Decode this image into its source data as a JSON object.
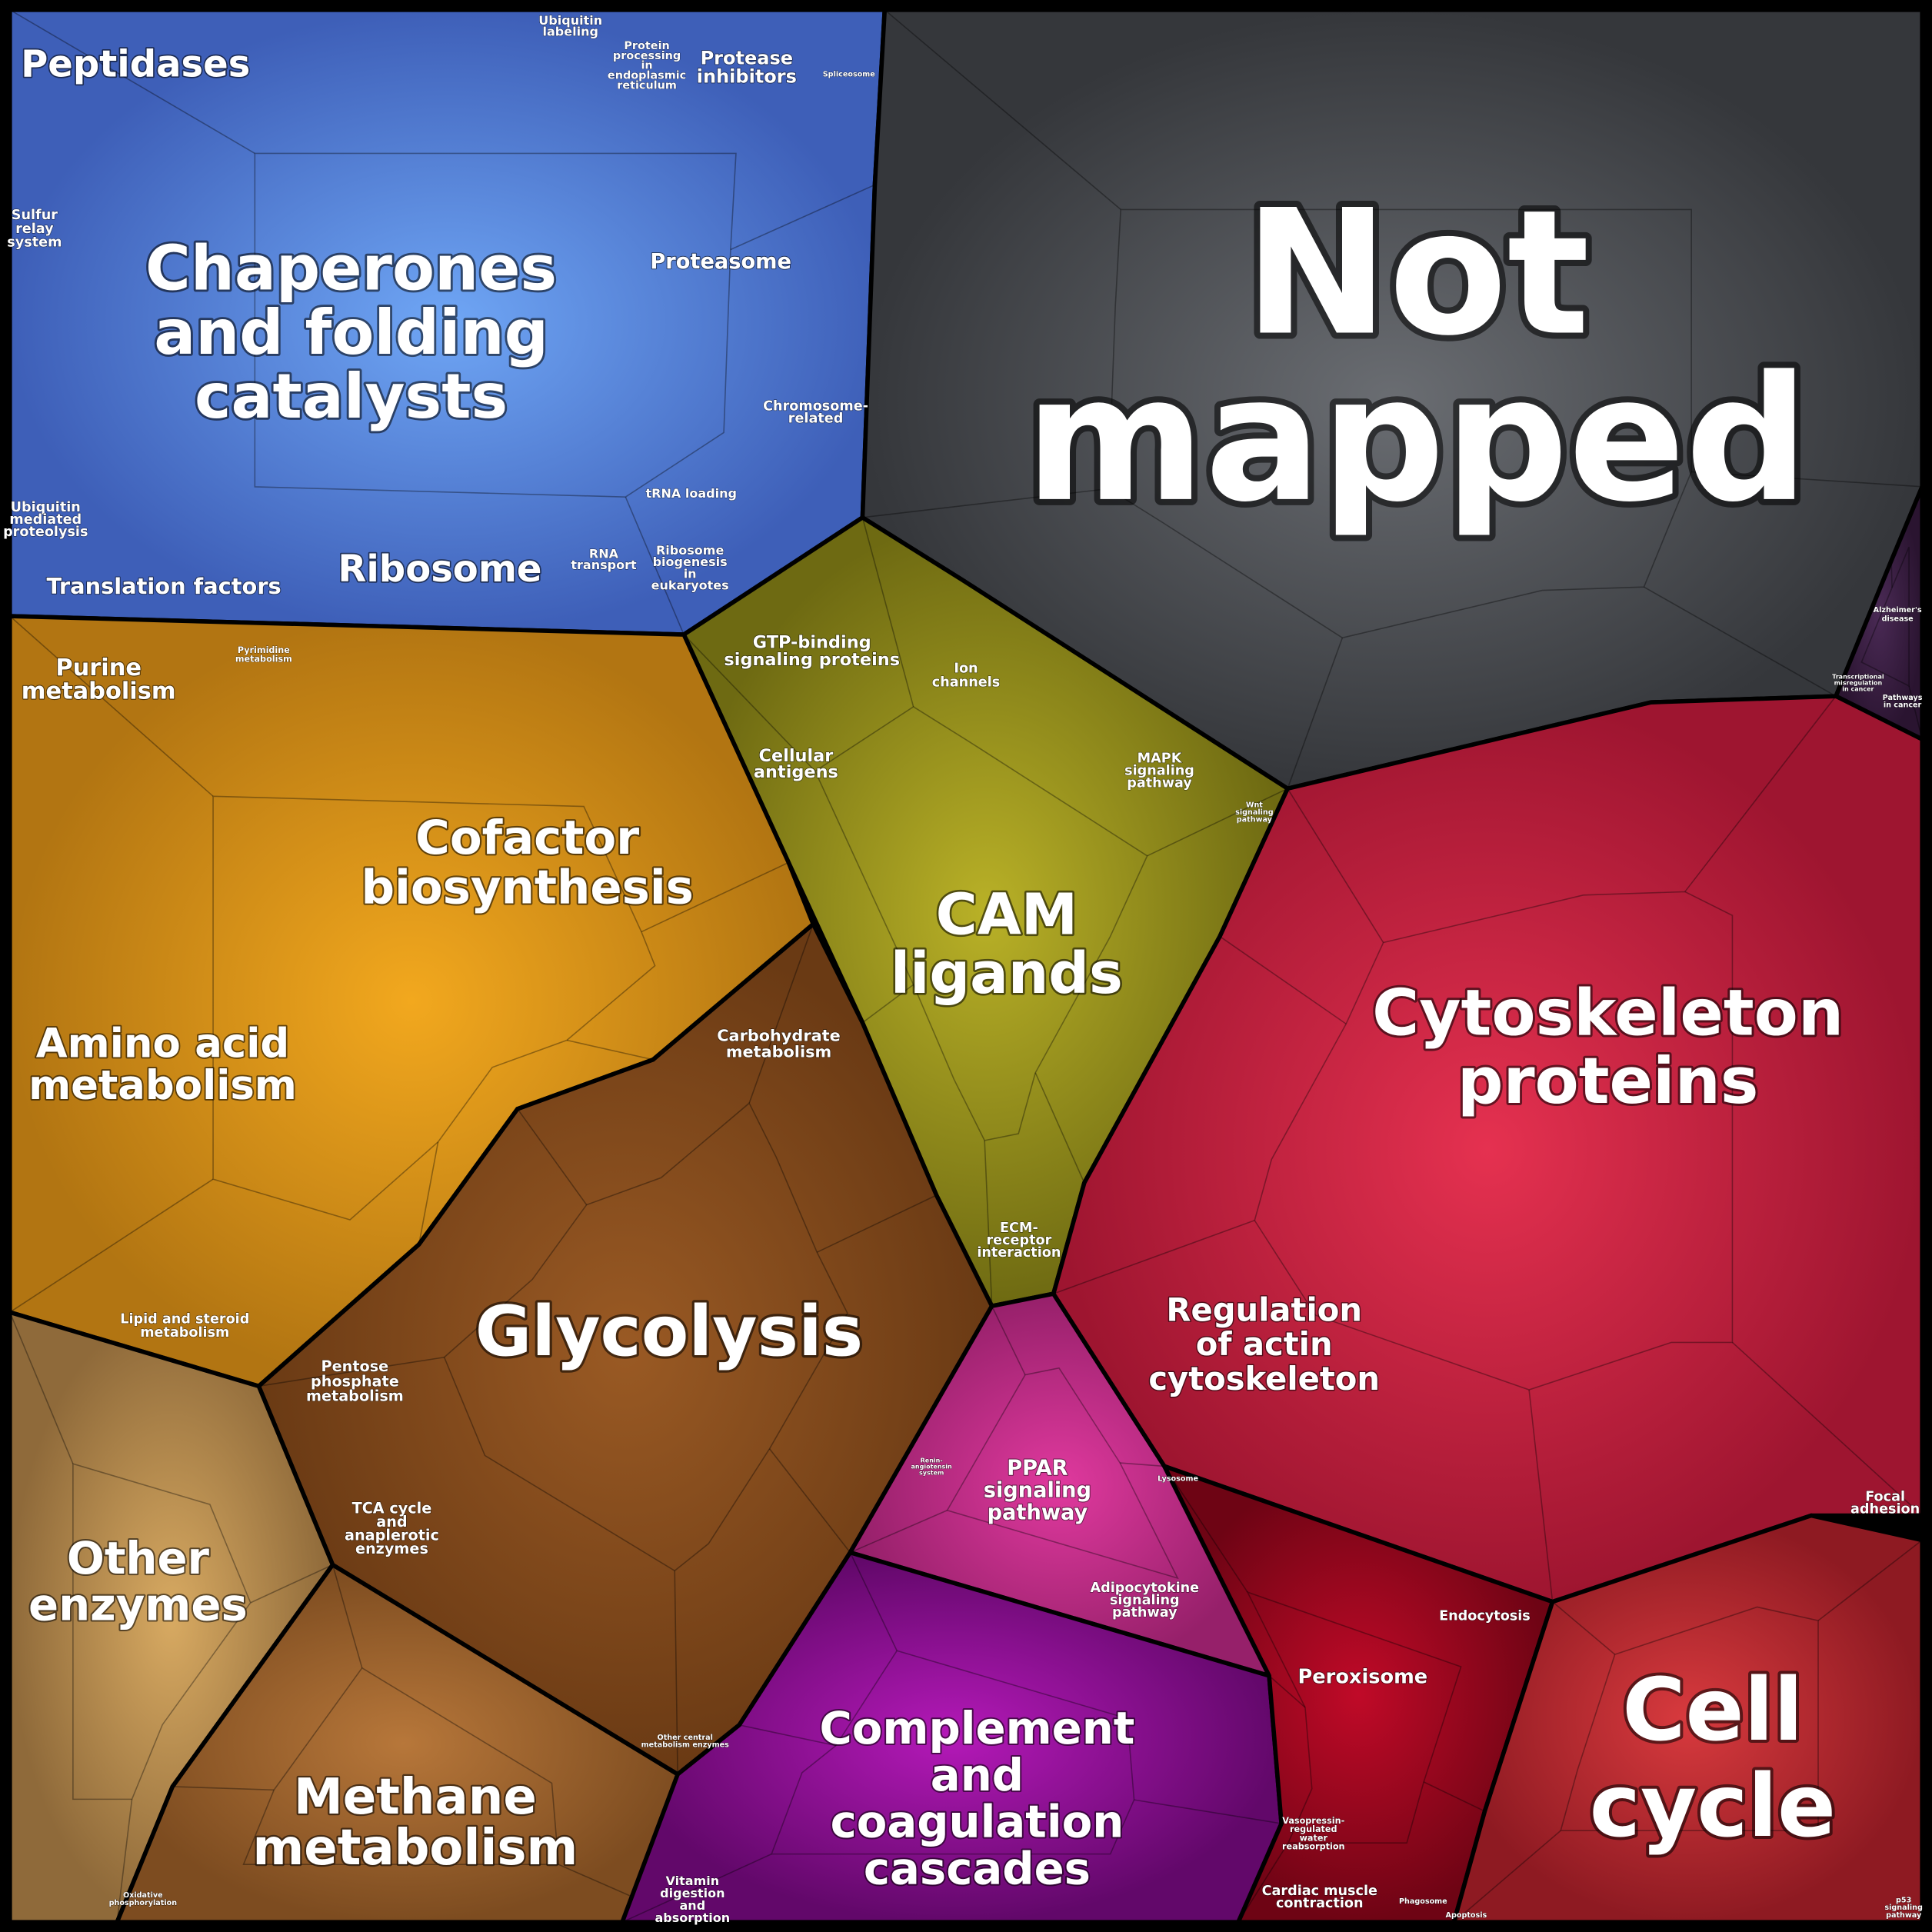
{
  "labels": [
    [
      "Not",
      "mapped"
    ],
    [
      "Chaperones",
      "and folding",
      "catalysts"
    ],
    [
      "Peptidases"
    ],
    [
      "Proteasome"
    ],
    [
      "Ribosome"
    ],
    [
      "Translation factors"
    ],
    [
      "Protease",
      "inhibitors"
    ],
    [
      "Ubiquitin",
      "labeling"
    ],
    [
      "Protein",
      "processing",
      "in",
      "endoplasmic",
      "reticulum"
    ],
    [
      "Spliceosome"
    ],
    [
      "Sulfur",
      "relay",
      "system"
    ],
    [
      "Chromosome-",
      "related"
    ],
    [
      "tRNA loading"
    ],
    [
      "RNA",
      "transport"
    ],
    [
      "Ribosome",
      "biogenesis",
      "in",
      "eukaryotes"
    ],
    [
      "Ubiquitin",
      "mediated",
      "proteolysis"
    ],
    [
      "Cofactor",
      "biosynthesis"
    ],
    [
      "Amino acid",
      "metabolism"
    ],
    [
      "Purine",
      "metabolism"
    ],
    [
      "Pyrimidine",
      "metabolism"
    ],
    [
      "Carbohydrate",
      "metabolism"
    ],
    [
      "Glycolysis"
    ],
    [
      "Lipid and steroid",
      "metabolism"
    ],
    [
      "Pentose",
      "phosphate",
      "metabolism"
    ],
    [
      "TCA cycle",
      "and",
      "anaplerotic",
      "enzymes"
    ],
    [
      "Other",
      "enzymes"
    ],
    [
      "Methane",
      "metabolism"
    ],
    [
      "Other central",
      "metabolism enzymes"
    ],
    [
      "Oxidative",
      "phosphorylation"
    ],
    [
      "GTP-binding",
      "signaling proteins"
    ],
    [
      "Ion",
      "channels"
    ],
    [
      "Cellular",
      "antigens"
    ],
    [
      "MAPK",
      "signaling",
      "pathway"
    ],
    [
      "CAM",
      "ligands"
    ],
    [
      "ECM-",
      "receptor",
      "interaction"
    ],
    [
      "Wnt",
      "signaling",
      "pathway"
    ],
    [
      "Cytoskeleton",
      "proteins"
    ],
    [
      "Regulation",
      "of actin",
      "cytoskeleton"
    ],
    [
      "Cell",
      "cycle"
    ],
    [
      "Focal",
      "adhesion"
    ],
    [
      "Endocytosis"
    ],
    [
      "Peroxisome"
    ],
    [
      "Lysosome"
    ],
    [
      "Alzheimer's",
      "disease"
    ],
    [
      "Transcriptional",
      "misregulation",
      "in cancer"
    ],
    [
      "Pathways",
      "in cancer"
    ],
    [
      "PPAR",
      "signaling",
      "pathway"
    ],
    [
      "Adipocytokine",
      "signaling",
      "pathway"
    ],
    [
      "Renin-",
      "angiotensin",
      "system"
    ],
    [
      "Complement",
      "and",
      "coagulation",
      "cascades"
    ],
    [
      "Vitamin",
      "digestion",
      "and",
      "absorption"
    ],
    [
      "Vasopressin-",
      "regulated",
      "water",
      "reabsorption"
    ],
    [
      "Cardiac muscle",
      "contraction"
    ],
    [
      "Phagosome"
    ],
    [
      "Apoptosis"
    ],
    [
      "p53",
      "signaling",
      "pathway"
    ]
  ]
}
